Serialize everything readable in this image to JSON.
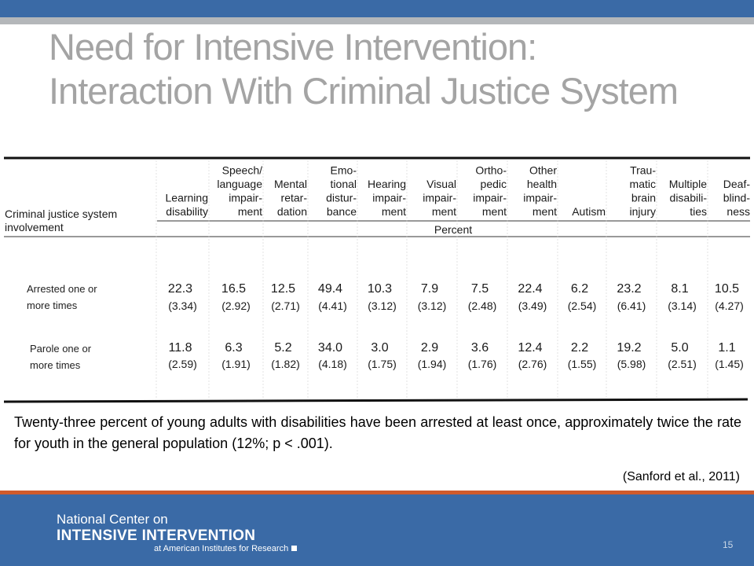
{
  "title_lines": [
    "Need for Intensive Intervention:",
    "Interaction With Criminal Justice System"
  ],
  "table": {
    "row_header": [
      "Criminal justice system",
      "involvement"
    ],
    "percent_label": "Percent",
    "columns": [
      [
        "Learning",
        "disability"
      ],
      [
        "Speech/",
        "language",
        "impair-",
        "ment"
      ],
      [
        "Mental",
        "retar-",
        "dation"
      ],
      [
        "Emo-",
        "tional",
        "distur-",
        "bance"
      ],
      [
        "Hearing",
        "impair-",
        "ment"
      ],
      [
        "Visual",
        "impair-",
        "ment"
      ],
      [
        "Ortho-",
        "pedic",
        "impair-",
        "ment"
      ],
      [
        "Other",
        "health",
        "impair-",
        "ment"
      ],
      [
        "Autism"
      ],
      [
        "Trau-",
        "matic",
        "brain",
        "injury"
      ],
      [
        "Multiple",
        "disabili-",
        "ties"
      ],
      [
        "Deaf-",
        "blind-",
        "ness"
      ]
    ],
    "rows": [
      {
        "label_lines": [
          "Arrested one or",
          "more times"
        ],
        "values": [
          "22.3",
          "16.5",
          "12.5",
          "49.4",
          "10.3",
          "7.9",
          "7.5",
          "22.4",
          "6.2",
          "23.2",
          "8.1",
          "10.5"
        ],
        "se": [
          "(3.34)",
          "(2.92)",
          "(2.71)",
          "(4.41)",
          "(3.12)",
          "(3.12)",
          "(2.48)",
          "(3.49)",
          "(2.54)",
          "(6.41)",
          "(3.14)",
          "(4.27)"
        ]
      },
      {
        "label_lines": [
          "Parole one or",
          "more times"
        ],
        "values": [
          "11.8",
          "6.3",
          "5.2",
          "34.0",
          "3.0",
          "2.9",
          "3.6",
          "12.4",
          "2.2",
          "19.2",
          "5.0",
          "1.1"
        ],
        "se": [
          "(2.59)",
          "(1.91)",
          "(1.82)",
          "(4.18)",
          "(1.75)",
          "(1.94)",
          "(1.76)",
          "(2.76)",
          "(1.55)",
          "(5.98)",
          "(2.51)",
          "(1.45)"
        ]
      }
    ]
  },
  "summary_text": "Twenty-three percent of young adults with disabilities have been arrested at least once, approximately twice the rate for youth in the general population (12%; p < .001).",
  "citation": "(Sanford et al., 2011)",
  "footer": {
    "org_line1": "National Center on",
    "org_line2": "INTENSIVE INTERVENTION",
    "org_line3": "at American Institutes for Research",
    "page_number": "15"
  },
  "colors": {
    "brand_blue": "#3a6aa6",
    "accent_orange": "#cf5b2c",
    "title_gray": "#a4a4a4"
  }
}
